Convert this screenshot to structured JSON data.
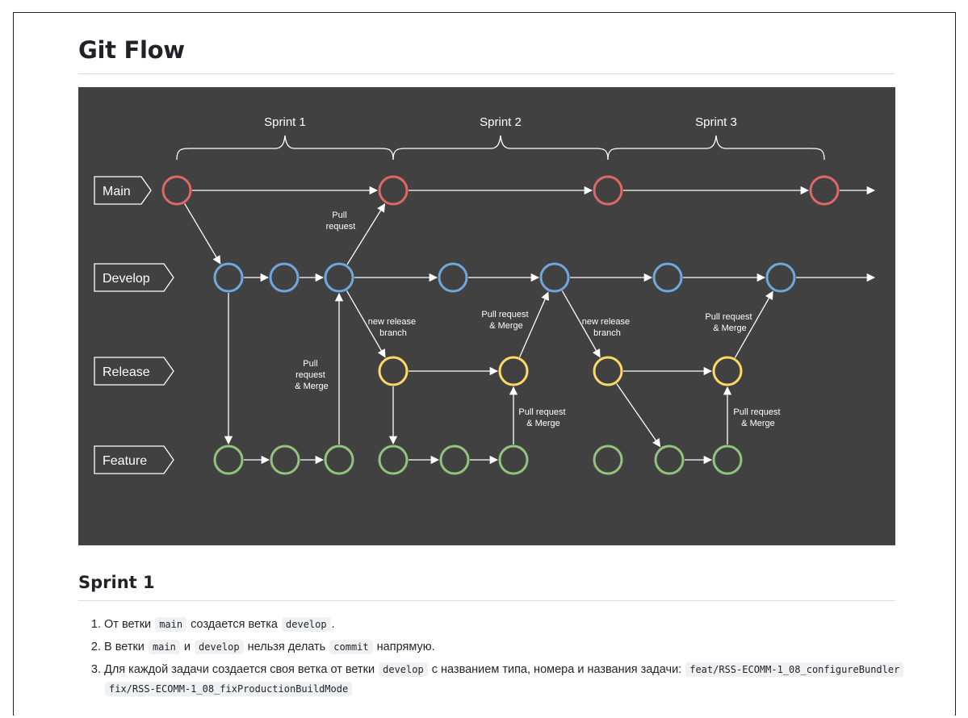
{
  "page": {
    "title": "Git Flow",
    "section_title": "Sprint 1"
  },
  "diagram": {
    "sprints": [
      "Sprint 1",
      "Sprint 2",
      "Sprint 3"
    ],
    "branches": [
      "Main",
      "Develop",
      "Release",
      "Feature"
    ],
    "annotations": {
      "pull_request": [
        "Pull",
        "request"
      ],
      "pull_request_merge_vertical": [
        "Pull",
        "request",
        "& Merge"
      ],
      "new_release_branch_1": [
        "new release",
        "branch"
      ],
      "new_release_branch_2": [
        "new release",
        "branch"
      ],
      "pull_request_merge_1": [
        "Pull request",
        "& Merge"
      ],
      "pull_request_merge_2": [
        "Pull request",
        "& Merge"
      ],
      "pull_request_merge_3": [
        "Pull request",
        "& Merge"
      ],
      "pull_request_merge_4": [
        "Pull request",
        "& Merge"
      ]
    },
    "colors": {
      "background": "#414141",
      "main": "#e06767",
      "develop": "#6fa8dc",
      "release": "#ffd966",
      "feature": "#93c47d",
      "line": "#ffffff"
    }
  },
  "list": {
    "item1": {
      "t1": "От ветки",
      "c1": "main",
      "t2": "создается ветка",
      "c2": "develop",
      "t3": "."
    },
    "item2": {
      "t1": "В ветки",
      "c1": "main",
      "t2": "и",
      "c2": "develop",
      "t3": "нельзя делать",
      "c3": "commit",
      "t4": "напрямую."
    },
    "item3": {
      "t1": "Для каждой задачи создается своя ветка от ветки",
      "c1": "develop",
      "t2": "с названием типа, номера и названия задачи:",
      "c2": "feat/RSS-ECOMM-1_08_configureBundler",
      "c3": "fix/RSS-ECOMM-1_08_fixProductionBuildMode"
    }
  }
}
